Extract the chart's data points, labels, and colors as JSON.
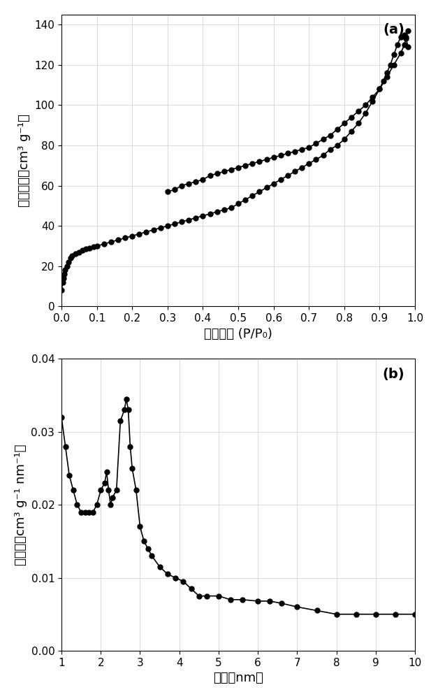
{
  "plot_a": {
    "label": "(a)",
    "xlabel": "相对压力 (P/P₀)",
    "ylabel": "吸附质量（cm³ g⁻¹）",
    "xlim": [
      0,
      1.0
    ],
    "ylim": [
      0,
      145
    ],
    "xticks": [
      0,
      0.1,
      0.2,
      0.3,
      0.4,
      0.5,
      0.6,
      0.7,
      0.8,
      0.9,
      1.0
    ],
    "yticks": [
      0,
      20,
      40,
      60,
      80,
      100,
      120,
      140
    ],
    "adsorption_x": [
      0.001,
      0.003,
      0.005,
      0.008,
      0.01,
      0.015,
      0.02,
      0.025,
      0.03,
      0.04,
      0.05,
      0.06,
      0.07,
      0.08,
      0.09,
      0.1,
      0.12,
      0.14,
      0.16,
      0.18,
      0.2,
      0.22,
      0.24,
      0.26,
      0.28,
      0.3,
      0.32,
      0.34,
      0.36,
      0.38,
      0.4,
      0.42,
      0.44,
      0.46,
      0.48,
      0.5,
      0.52,
      0.54,
      0.56,
      0.58,
      0.6,
      0.62,
      0.64,
      0.66,
      0.68,
      0.7,
      0.72,
      0.74,
      0.76,
      0.78,
      0.8,
      0.82,
      0.84,
      0.86,
      0.88,
      0.9,
      0.92,
      0.94,
      0.96,
      0.97,
      0.975,
      0.98
    ],
    "adsorption_y": [
      8,
      12,
      14,
      16,
      18,
      20,
      22,
      24,
      25,
      26,
      27,
      28,
      28.5,
      29,
      29.5,
      30,
      31,
      32,
      33,
      34,
      35,
      36,
      37,
      38,
      39,
      40,
      41,
      42,
      43,
      44,
      45,
      46,
      47,
      48,
      49,
      51,
      53,
      55,
      57,
      59,
      61,
      63,
      65,
      67,
      69,
      71,
      73,
      75,
      78,
      80,
      83,
      87,
      91,
      96,
      102,
      108,
      114,
      120,
      126,
      130,
      134,
      137
    ],
    "desorption_x": [
      0.98,
      0.975,
      0.97,
      0.96,
      0.95,
      0.94,
      0.93,
      0.92,
      0.91,
      0.9,
      0.88,
      0.86,
      0.84,
      0.82,
      0.8,
      0.78,
      0.76,
      0.74,
      0.72,
      0.7,
      0.68,
      0.66,
      0.64,
      0.62,
      0.6,
      0.58,
      0.56,
      0.54,
      0.52,
      0.5,
      0.48,
      0.46,
      0.44,
      0.42,
      0.4,
      0.38,
      0.36,
      0.34,
      0.32,
      0.3
    ],
    "desorption_y": [
      129,
      133,
      135,
      134,
      130,
      125,
      120,
      116,
      112,
      108,
      104,
      100,
      97,
      94,
      91,
      88,
      85,
      83,
      81,
      79,
      78,
      77,
      76,
      75,
      74,
      73,
      72,
      71,
      70,
      69,
      68,
      67,
      66,
      65,
      63,
      62,
      61,
      60,
      58,
      57
    ]
  },
  "plot_b": {
    "label": "(b)",
    "xlabel": "孔径（nm）",
    "ylabel": "孔体积（cm³ g⁻¹ nm⁻¹）",
    "xlim": [
      1,
      10
    ],
    "ylim": [
      0,
      0.04
    ],
    "xticks": [
      1,
      2,
      3,
      4,
      5,
      6,
      7,
      8,
      9,
      10
    ],
    "yticks": [
      0.0,
      0.01,
      0.02,
      0.03,
      0.04
    ],
    "x": [
      1.0,
      1.1,
      1.2,
      1.3,
      1.4,
      1.5,
      1.6,
      1.7,
      1.8,
      1.9,
      2.0,
      2.1,
      2.15,
      2.2,
      2.25,
      2.3,
      2.4,
      2.5,
      2.6,
      2.65,
      2.7,
      2.75,
      2.8,
      2.9,
      3.0,
      3.1,
      3.2,
      3.3,
      3.5,
      3.7,
      3.9,
      4.1,
      4.3,
      4.5,
      4.7,
      5.0,
      5.3,
      5.6,
      6.0,
      6.3,
      6.6,
      7.0,
      7.5,
      8.0,
      8.5,
      9.0,
      9.5,
      10.0
    ],
    "y": [
      0.032,
      0.028,
      0.024,
      0.022,
      0.02,
      0.019,
      0.019,
      0.019,
      0.019,
      0.02,
      0.022,
      0.023,
      0.0245,
      0.022,
      0.02,
      0.021,
      0.022,
      0.0315,
      0.033,
      0.0345,
      0.033,
      0.028,
      0.025,
      0.022,
      0.017,
      0.015,
      0.014,
      0.013,
      0.0115,
      0.0105,
      0.01,
      0.0095,
      0.0085,
      0.0075,
      0.0075,
      0.0075,
      0.007,
      0.007,
      0.0068,
      0.0068,
      0.0065,
      0.006,
      0.0055,
      0.005,
      0.005,
      0.005,
      0.005,
      0.005
    ]
  },
  "line_color": "#000000",
  "marker": "o",
  "markersize": 5,
  "linewidth": 1.2,
  "bg_color": "#ffffff",
  "grid_color": "#cccccc",
  "font_size_label": 13,
  "font_size_tick": 11,
  "font_size_annot": 14
}
